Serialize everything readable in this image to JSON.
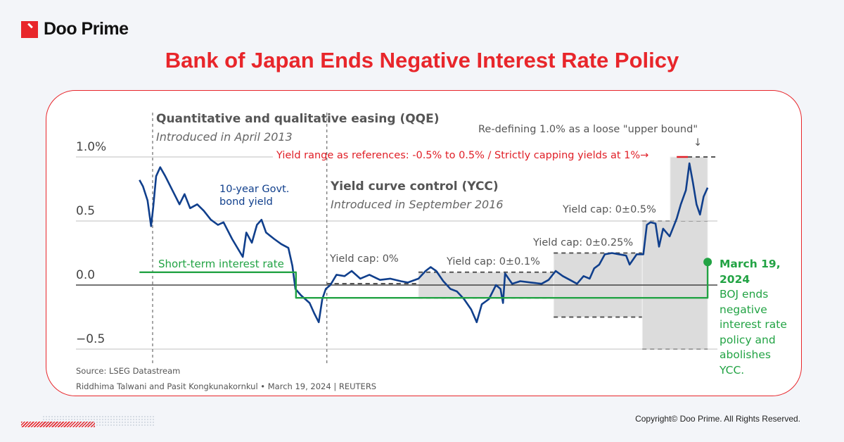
{
  "brand": {
    "name": "Doo Prime",
    "accent": "#e8262b"
  },
  "title": "Bank of Japan Ends Negative Interest Rate Policy",
  "copyright": "Copyright© Doo Prime. All Rights Reserved.",
  "chart_data": {
    "type": "line",
    "ylim": [
      -0.5,
      1.0
    ],
    "y_ticks": [
      {
        "value": 1.0,
        "label": "1.0%"
      },
      {
        "value": 0.5,
        "label": "0.5"
      },
      {
        "value": 0.0,
        "label": "0.0"
      },
      {
        "value": -0.5,
        "label": "−0.5"
      }
    ],
    "x_unit": "year",
    "grid": true,
    "series": [
      {
        "name": "10-year Govt. bond yield",
        "color": "#103f8c",
        "points": [
          [
            2012.99,
            0.82
          ],
          [
            2013.06,
            0.77
          ],
          [
            2013.15,
            0.66
          ],
          [
            2013.22,
            0.46
          ],
          [
            2013.26,
            0.6
          ],
          [
            2013.32,
            0.85
          ],
          [
            2013.4,
            0.92
          ],
          [
            2013.5,
            0.85
          ],
          [
            2013.64,
            0.74
          ],
          [
            2013.78,
            0.63
          ],
          [
            2013.88,
            0.71
          ],
          [
            2013.99,
            0.6
          ],
          [
            2014.13,
            0.63
          ],
          [
            2014.26,
            0.58
          ],
          [
            2014.4,
            0.51
          ],
          [
            2014.54,
            0.47
          ],
          [
            2014.65,
            0.49
          ],
          [
            2014.82,
            0.36
          ],
          [
            2015.03,
            0.22
          ],
          [
            2015.1,
            0.41
          ],
          [
            2015.21,
            0.33
          ],
          [
            2015.31,
            0.47
          ],
          [
            2015.4,
            0.51
          ],
          [
            2015.49,
            0.41
          ],
          [
            2015.65,
            0.36
          ],
          [
            2015.79,
            0.32
          ],
          [
            2015.93,
            0.29
          ],
          [
            2016.01,
            0.15
          ],
          [
            2016.07,
            -0.03
          ],
          [
            2016.18,
            -0.08
          ],
          [
            2016.35,
            -0.14
          ],
          [
            2016.44,
            -0.22
          ],
          [
            2016.53,
            -0.29
          ],
          [
            2016.6,
            -0.11
          ],
          [
            2016.67,
            -0.03
          ],
          [
            2016.76,
            0.0
          ],
          [
            2016.88,
            0.08
          ],
          [
            2017.04,
            0.07
          ],
          [
            2017.18,
            0.11
          ],
          [
            2017.35,
            0.05
          ],
          [
            2017.53,
            0.08
          ],
          [
            2017.74,
            0.04
          ],
          [
            2017.94,
            0.05
          ],
          [
            2018.15,
            0.03
          ],
          [
            2018.29,
            0.02
          ],
          [
            2018.5,
            0.05
          ],
          [
            2018.64,
            0.11
          ],
          [
            2018.74,
            0.14
          ],
          [
            2018.85,
            0.11
          ],
          [
            2018.99,
            0.03
          ],
          [
            2019.13,
            -0.03
          ],
          [
            2019.26,
            -0.05
          ],
          [
            2019.4,
            -0.11
          ],
          [
            2019.54,
            -0.19
          ],
          [
            2019.65,
            -0.29
          ],
          [
            2019.75,
            -0.15
          ],
          [
            2019.89,
            -0.11
          ],
          [
            2020.03,
            0.0
          ],
          [
            2020.12,
            -0.03
          ],
          [
            2020.17,
            -0.14
          ],
          [
            2020.21,
            0.09
          ],
          [
            2020.35,
            0.01
          ],
          [
            2020.51,
            0.03
          ],
          [
            2020.72,
            0.02
          ],
          [
            2020.93,
            0.01
          ],
          [
            2021.07,
            0.04
          ],
          [
            2021.21,
            0.11
          ],
          [
            2021.35,
            0.07
          ],
          [
            2021.49,
            0.04
          ],
          [
            2021.63,
            0.01
          ],
          [
            2021.76,
            0.07
          ],
          [
            2021.88,
            0.05
          ],
          [
            2021.97,
            0.13
          ],
          [
            2022.07,
            0.16
          ],
          [
            2022.18,
            0.24
          ],
          [
            2022.32,
            0.25
          ],
          [
            2022.46,
            0.24
          ],
          [
            2022.6,
            0.23
          ],
          [
            2022.67,
            0.16
          ],
          [
            2022.81,
            0.24
          ],
          [
            2022.94,
            0.24
          ],
          [
            2023.01,
            0.47
          ],
          [
            2023.08,
            0.49
          ],
          [
            2023.18,
            0.48
          ],
          [
            2023.25,
            0.3
          ],
          [
            2023.33,
            0.44
          ],
          [
            2023.46,
            0.38
          ],
          [
            2023.54,
            0.46
          ],
          [
            2023.6,
            0.52
          ],
          [
            2023.68,
            0.63
          ],
          [
            2023.78,
            0.74
          ],
          [
            2023.85,
            0.95
          ],
          [
            2023.92,
            0.8
          ],
          [
            2023.99,
            0.63
          ],
          [
            2024.06,
            0.55
          ],
          [
            2024.13,
            0.69
          ],
          [
            2024.21,
            0.76
          ]
        ]
      },
      {
        "name": "Short-term interest rate",
        "color": "#22a344",
        "points": [
          [
            2012.99,
            0.1
          ],
          [
            2016.08,
            0.1
          ],
          [
            2016.08,
            -0.1
          ],
          [
            2024.21,
            -0.1
          ],
          [
            2024.21,
            0.18
          ]
        ]
      }
    ],
    "bands": [
      {
        "label": "Yield cap: 0%",
        "start": 2016.69,
        "end": 2018.5,
        "low": 0.0,
        "high": 0.0
      },
      {
        "label": "Yield cap: 0±0.1%",
        "start": 2018.5,
        "end": 2021.17,
        "low": -0.1,
        "high": 0.1
      },
      {
        "label": "Yield cap: 0±0.25%",
        "start": 2021.17,
        "end": 2022.92,
        "low": -0.25,
        "high": 0.25
      },
      {
        "label": "Yield cap: 0±0.5%",
        "start": 2022.92,
        "end": 2024.21,
        "low": -0.5,
        "high": 0.5
      },
      {
        "label": "",
        "start": 2023.47,
        "end": 2024.21,
        "low": 0.5,
        "high": 1.0
      }
    ],
    "events": [
      {
        "date": 2013.25,
        "title": "Quantitative and qualitative easing (QQE)",
        "subtitle": "Introduced in April 2013"
      },
      {
        "date": 2016.69,
        "title": "Yield curve control (YCC)",
        "subtitle": "Introduced in September 2016"
      }
    ],
    "annotations": {
      "bond_label_1": "10-year Govt.",
      "bond_label_2": "bond yield",
      "short_rate_label": "Short-term interest rate",
      "yield_range": "Yield range as references: -0.5% to 0.5% / Strictly capping yields at 1%→",
      "upper_bound": "Re-defining 1.0% as a loose \"upper bound\"",
      "upper_bound_arrow": "↓",
      "end_date": "March 19,",
      "end_year": "2024",
      "end_text": [
        "BOJ ends",
        "negative",
        "interest rate",
        "policy and",
        "abolishes",
        "YCC."
      ]
    },
    "source": "Source: LSEG Datastream",
    "credit": "Riddhima Talwani and Pasit Kongkunakornkul • March 19, 2024 | REUTERS"
  }
}
